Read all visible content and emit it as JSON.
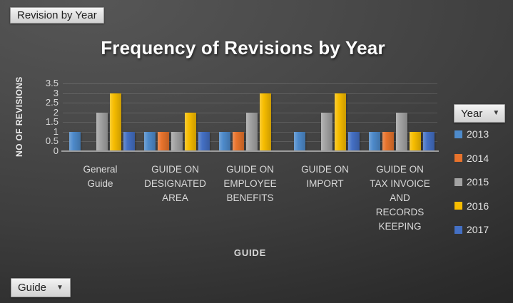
{
  "window": {
    "report_filter_button": "Revision by Year",
    "legend_field_button": {
      "label": "Year"
    },
    "axis_field_button": {
      "label": "Guide"
    }
  },
  "chart_data": {
    "type": "bar",
    "title": "Frequency of Revisions by Year",
    "xlabel": "GUIDE",
    "ylabel": "NO OF REVISIONS",
    "ylim": [
      0,
      3.5
    ],
    "ytick_step": 0.5,
    "yticks": [
      "0",
      "0.5",
      "1",
      "1.5",
      "2",
      "2.5",
      "3",
      "3.5"
    ],
    "grid": true,
    "legend_position": "right",
    "categories": [
      "General Guide",
      "GUIDE ON DESIGNATED AREA",
      "GUIDE ON EMPLOYEE BENEFITS",
      "GUIDE ON IMPORT",
      "GUIDE ON TAX INVOICE AND RECORDS KEEPING"
    ],
    "category_label_lines": [
      [
        "General",
        "Guide"
      ],
      [
        "GUIDE ON",
        "DESIGNATED",
        "AREA"
      ],
      [
        "GUIDE ON",
        "EMPLOYEE",
        "BENEFITS"
      ],
      [
        "GUIDE ON",
        "IMPORT"
      ],
      [
        "GUIDE ON",
        "TAX INVOICE",
        "AND",
        "RECORDS",
        "KEEPING"
      ]
    ],
    "series": [
      {
        "name": "2013",
        "color": "#4E8BCB",
        "values": [
          1,
          1,
          1,
          1,
          1
        ]
      },
      {
        "name": "2014",
        "color": "#E8732C",
        "values": [
          0,
          1,
          1,
          0,
          1
        ]
      },
      {
        "name": "2015",
        "color": "#A3A3A3",
        "values": [
          2,
          1,
          2,
          2,
          2
        ]
      },
      {
        "name": "2016",
        "color": "#F7BD00",
        "values": [
          3,
          2,
          3,
          3,
          1
        ]
      },
      {
        "name": "2017",
        "color": "#4470C4",
        "values": [
          1,
          1,
          0,
          1,
          1
        ]
      }
    ]
  },
  "colors": {
    "background_dark": "#2c2c2c",
    "background_light": "#565656",
    "title_text": "#ffffff",
    "axis_text": "#d9d9d9",
    "gridline": "#5c5c5c",
    "axis_line": "#9c9c9c",
    "button_face": "#e3e3e3",
    "button_text": "#1f1f1f"
  }
}
